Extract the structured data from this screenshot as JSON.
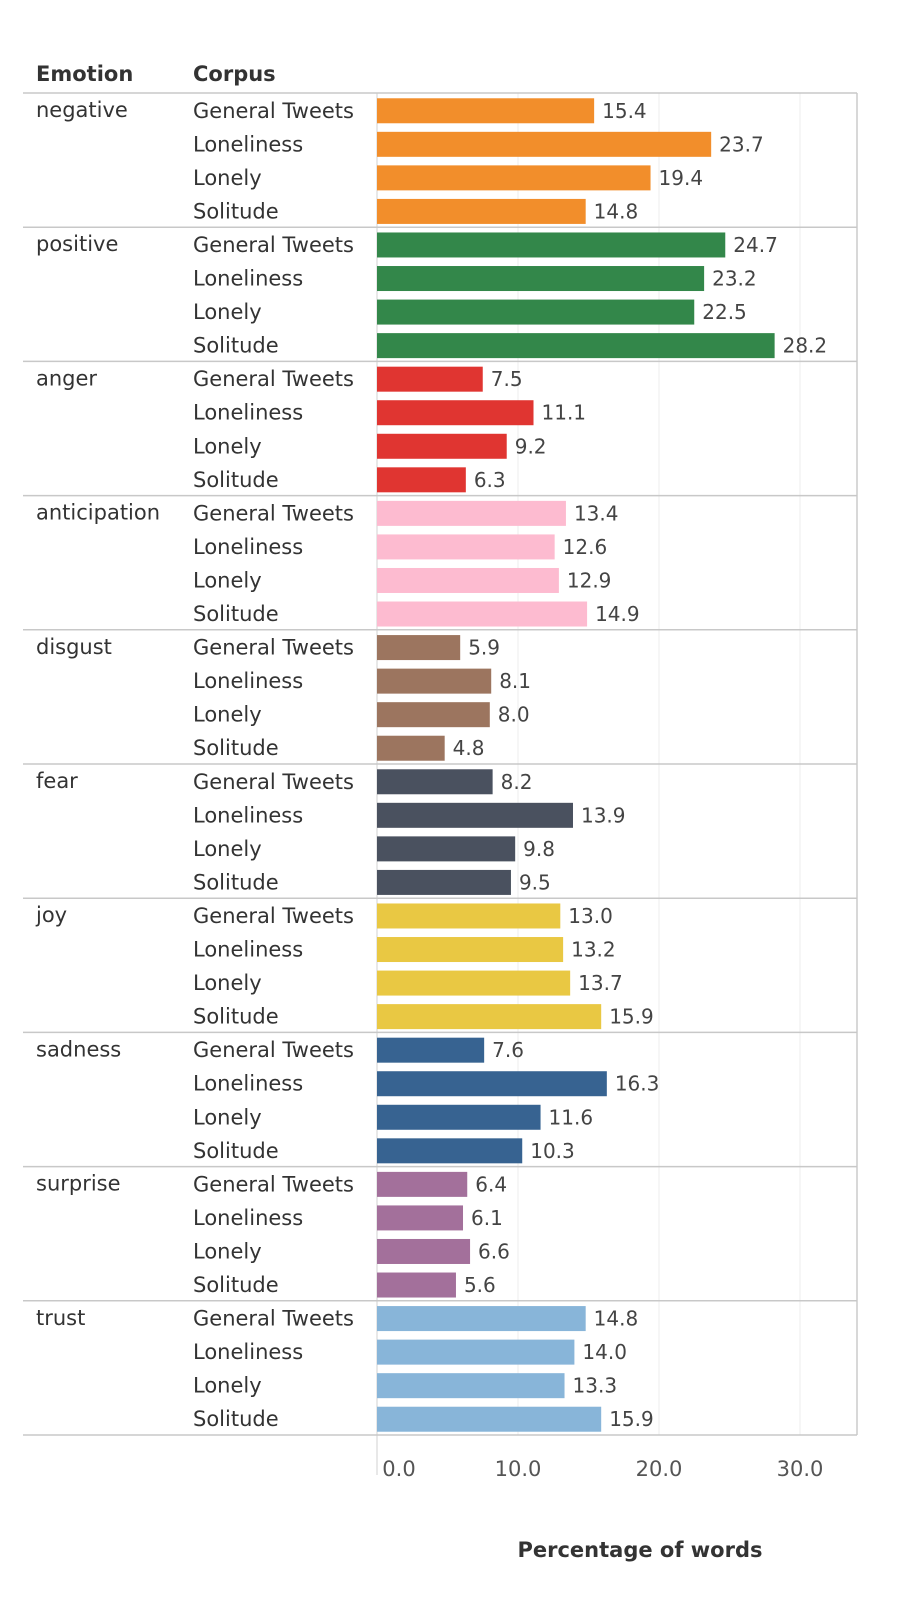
{
  "headers": {
    "emotion": "Emotion",
    "corpus": "Corpus"
  },
  "chart_data": {
    "type": "bar",
    "orientation": "horizontal",
    "title": "",
    "xlabel": "Percentage of words",
    "row_dimensions": [
      "Emotion",
      "Corpus"
    ],
    "corpora": [
      "General Tweets",
      "Loneliness",
      "Lonely",
      "Solitude"
    ],
    "xlim": [
      0,
      34
    ],
    "xticks": [
      0,
      10,
      20,
      30
    ],
    "xtick_labels": [
      "0.0",
      "10.0",
      "20.0",
      "30.0"
    ],
    "grid": "vertical gridlines at ticks",
    "data_labels": true,
    "groups": [
      {
        "emotion": "negative",
        "color": "#f28e2b",
        "values": [
          15.4,
          23.7,
          19.4,
          14.8
        ]
      },
      {
        "emotion": "positive",
        "color": "#33874a",
        "values": [
          24.7,
          23.2,
          22.5,
          28.2
        ]
      },
      {
        "emotion": "anger",
        "color": "#e03531",
        "values": [
          7.5,
          11.1,
          9.2,
          6.3
        ]
      },
      {
        "emotion": "anticipation",
        "color": "#fdbbd0",
        "values": [
          13.4,
          12.6,
          12.9,
          14.9
        ]
      },
      {
        "emotion": "disgust",
        "color": "#9c755f",
        "values": [
          5.9,
          8.1,
          8.0,
          4.8
        ]
      },
      {
        "emotion": "fear",
        "color": "#4a515f",
        "values": [
          8.2,
          13.9,
          9.8,
          9.5
        ]
      },
      {
        "emotion": "joy",
        "color": "#e9c843",
        "values": [
          13.0,
          13.2,
          13.7,
          15.9
        ]
      },
      {
        "emotion": "sadness",
        "color": "#376391",
        "values": [
          7.6,
          16.3,
          11.6,
          10.3
        ]
      },
      {
        "emotion": "surprise",
        "color": "#a3709b",
        "values": [
          6.4,
          6.1,
          6.6,
          5.6
        ]
      },
      {
        "emotion": "trust",
        "color": "#88b5d9",
        "values": [
          14.8,
          14.0,
          13.3,
          15.9
        ]
      }
    ]
  }
}
